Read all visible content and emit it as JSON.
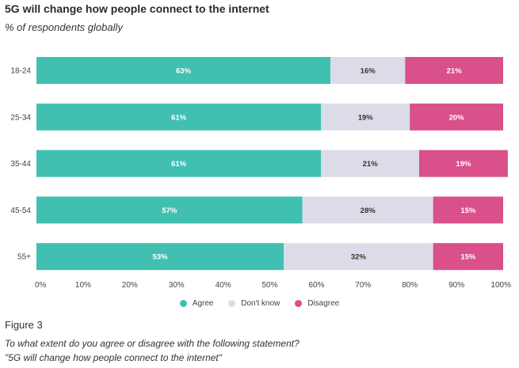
{
  "colors": {
    "agree": "#41c0b1",
    "dont_know": "#dcdce8",
    "disagree": "#d9508a",
    "label_on_dark": "#ffffff",
    "label_on_light": "#333333"
  },
  "chart_data": {
    "type": "bar",
    "orientation": "horizontal",
    "stacked": true,
    "title": "5G will change how people connect to the internet",
    "subtitle": "% of respondents globally",
    "categories": [
      "18-24",
      "25-34",
      "35-44",
      "45-54",
      "55+"
    ],
    "series": [
      {
        "name": "Agree",
        "values": [
          63,
          61,
          61,
          57,
          53
        ],
        "labels": [
          "63%",
          "61%",
          "61%",
          "57%",
          "53%"
        ]
      },
      {
        "name": "Don't know",
        "values": [
          16,
          19,
          21,
          28,
          32
        ],
        "labels": [
          "16%",
          "19%",
          "21%",
          "28%",
          "32%"
        ]
      },
      {
        "name": "Disagree",
        "values": [
          21,
          20,
          19,
          15,
          15
        ],
        "labels": [
          "21%",
          "20%",
          "19%",
          "15%",
          "15%"
        ]
      }
    ],
    "xlim": [
      0,
      100
    ],
    "xticks": [
      "0%",
      "10%",
      "20%",
      "30%",
      "40%",
      "50%",
      "60%",
      "70%",
      "80%",
      "90%",
      "100%"
    ],
    "legend_position": "bottom-center",
    "grid": false
  },
  "caption": {
    "figure_label": "Figure 3",
    "question": "To what extent do you agree or disagree with the following statement?",
    "statement": "\"5G will change how people connect to the internet\""
  }
}
